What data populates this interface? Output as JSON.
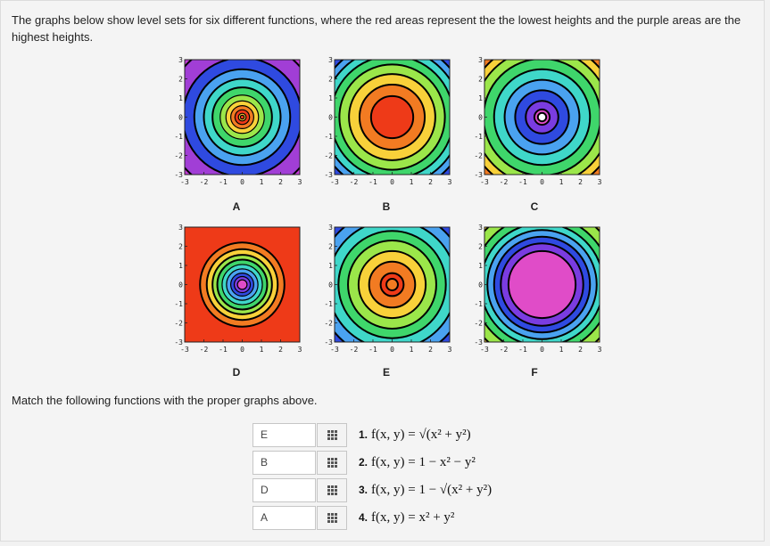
{
  "intro": "The graphs below show level sets for six different functions, where the red areas represent the the lowest heights and the purple areas are the highest heights.",
  "match_prompt": "Match the following functions with the proper graphs above.",
  "axis_ticks": [
    "-3",
    "-2",
    "-1",
    "0",
    "1",
    "2",
    "3"
  ],
  "graphs": [
    {
      "id": "A",
      "label": "A",
      "type": "sqrt-inverted",
      "corner": "#c43cd8",
      "outer": "#a13ed6"
    },
    {
      "id": "B",
      "label": "B",
      "type": "inv-paraboloid"
    },
    {
      "id": "C",
      "label": "C",
      "type": "paraboloid"
    },
    {
      "id": "D",
      "label": "D",
      "type": "inv-sqrt-dense"
    },
    {
      "id": "E",
      "label": "E",
      "type": "cone"
    },
    {
      "id": "F",
      "label": "F",
      "type": "neg-paraboloid"
    }
  ],
  "answers": [
    {
      "value": "E",
      "func_num": "1.",
      "func_text": "f(x, y) = √(x² + y²)"
    },
    {
      "value": "B",
      "func_num": "2.",
      "func_text": "f(x, y) = 1 − x² − y²"
    },
    {
      "value": "D",
      "func_num": "3.",
      "func_text": "f(x, y) = 1 − √(x² + y²)"
    },
    {
      "value": "A",
      "func_num": "4.",
      "func_text": "f(x, y) = x² + y²"
    }
  ],
  "palette": [
    "#ee3a18",
    "#f27b22",
    "#f8d13a",
    "#9be64a",
    "#3fd66b",
    "#3fd7c9",
    "#4aa2f0",
    "#2f4ae0",
    "#7a3ce0",
    "#c63fd9"
  ]
}
